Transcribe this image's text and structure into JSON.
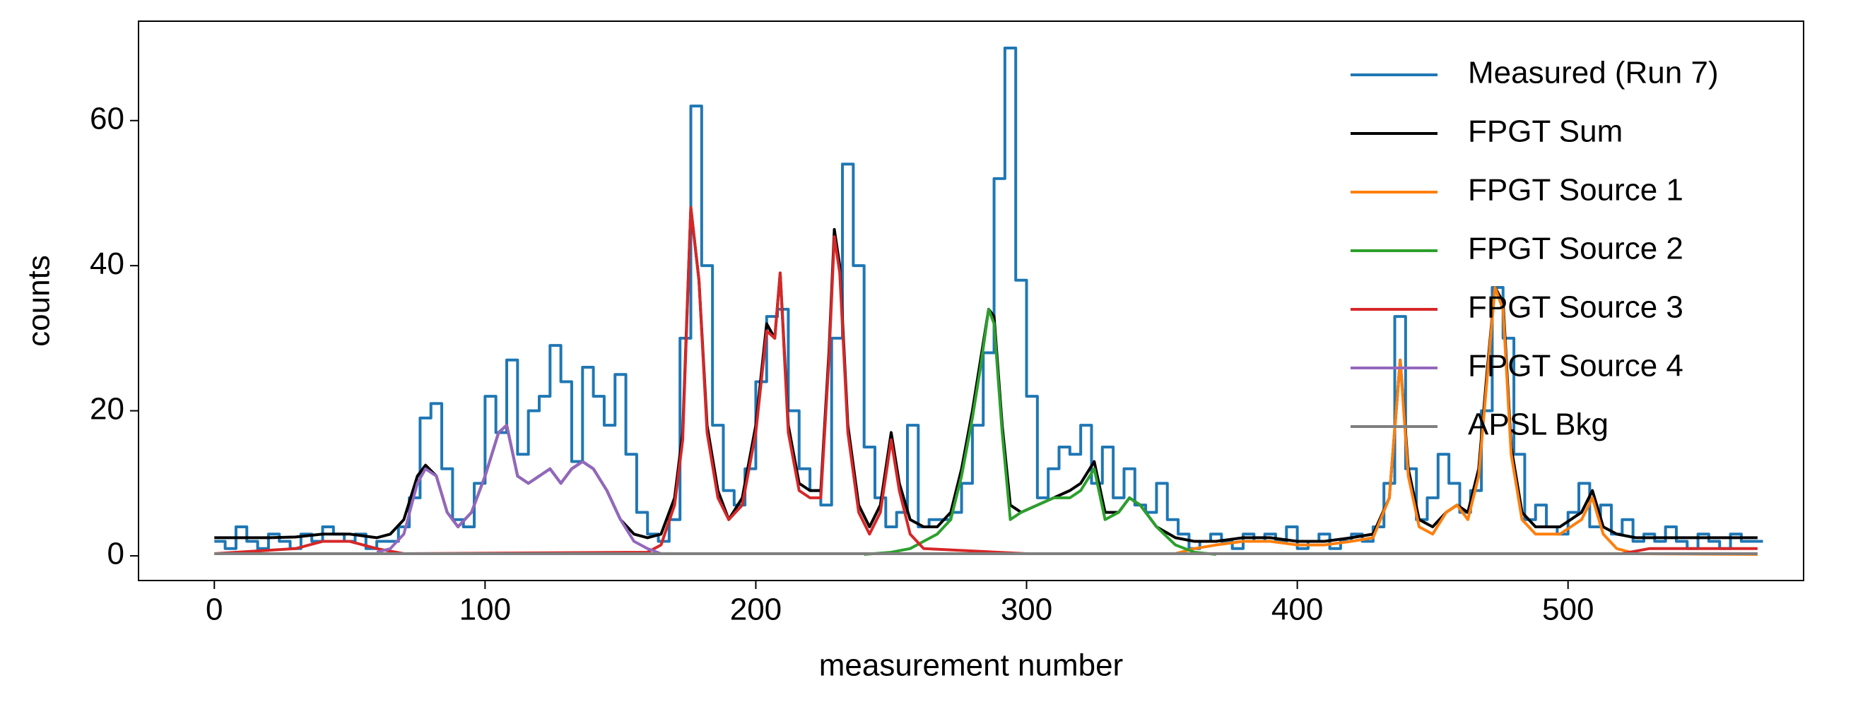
{
  "chart_data": {
    "type": "line",
    "xlabel": "measurement number",
    "ylabel": "counts",
    "xlim": [
      -28,
      587
    ],
    "ylim": [
      -3.4,
      73.7
    ],
    "xticks": [
      0,
      100,
      200,
      300,
      400,
      500
    ],
    "yticks": [
      0,
      20,
      40,
      60
    ],
    "legend": "upper right",
    "series": [
      {
        "name": "Measured (Run 7)",
        "color": "#1f77b4",
        "step": true,
        "x": [
          0,
          4,
          8,
          12,
          16,
          20,
          24,
          28,
          32,
          36,
          40,
          44,
          48,
          52,
          56,
          60,
          64,
          68,
          72,
          76,
          80,
          84,
          88,
          92,
          96,
          100,
          104,
          108,
          112,
          116,
          120,
          124,
          128,
          132,
          136,
          140,
          144,
          148,
          152,
          156,
          160,
          164,
          168,
          172,
          176,
          180,
          184,
          188,
          192,
          196,
          200,
          204,
          208,
          212,
          216,
          220,
          224,
          228,
          232,
          236,
          240,
          244,
          248,
          252,
          256,
          260,
          264,
          268,
          272,
          276,
          280,
          284,
          288,
          292,
          296,
          300,
          304,
          308,
          312,
          316,
          320,
          324,
          328,
          332,
          336,
          340,
          344,
          348,
          352,
          356,
          360,
          364,
          368,
          372,
          376,
          380,
          384,
          388,
          392,
          396,
          400,
          404,
          408,
          412,
          416,
          420,
          424,
          428,
          432,
          436,
          440,
          444,
          448,
          452,
          456,
          460,
          464,
          468,
          472,
          476,
          480,
          484,
          488,
          492,
          496,
          500,
          504,
          508,
          512,
          516,
          520,
          524,
          528,
          532,
          536,
          540,
          544,
          548,
          552,
          556,
          560,
          564,
          568
        ],
        "values": [
          2,
          1,
          4,
          2,
          1,
          3,
          2,
          1,
          3,
          2,
          4,
          3,
          2,
          3,
          1,
          2,
          2,
          4,
          8,
          19,
          21,
          12,
          5,
          4,
          10,
          22,
          17,
          27,
          14,
          20,
          22,
          29,
          24,
          13,
          26,
          22,
          18,
          25,
          14,
          6,
          3,
          2,
          5,
          30,
          62,
          40,
          18,
          9,
          7,
          12,
          24,
          33,
          34,
          20,
          12,
          9,
          7,
          30,
          54,
          40,
          15,
          8,
          4,
          6,
          18,
          4,
          5,
          5,
          6,
          10,
          18,
          28,
          52,
          70,
          38,
          22,
          8,
          12,
          15,
          14,
          18,
          10,
          15,
          8,
          12,
          7,
          6,
          10,
          5,
          3,
          1,
          2,
          3,
          2,
          1,
          3,
          2,
          3,
          2,
          4,
          1,
          2,
          3,
          1,
          2,
          3,
          2,
          4,
          10,
          33,
          12,
          5,
          8,
          14,
          10,
          6,
          9,
          20,
          37,
          30,
          14,
          5,
          7,
          4,
          3,
          6,
          10,
          4,
          7,
          3,
          5,
          2,
          3,
          2,
          4,
          2,
          1,
          3,
          2,
          1,
          3,
          2,
          2
        ]
      },
      {
        "name": "FPGT Sum",
        "color": "#000000",
        "x": [
          0,
          10,
          20,
          30,
          40,
          50,
          60,
          65,
          70,
          75,
          78,
          82,
          86,
          90,
          95,
          100,
          105,
          108,
          112,
          116,
          120,
          124,
          128,
          132,
          136,
          140,
          145,
          150,
          155,
          160,
          165,
          170,
          173,
          176,
          179,
          182,
          186,
          190,
          195,
          200,
          204,
          207,
          209,
          212,
          216,
          220,
          224,
          227,
          229,
          231,
          234,
          238,
          242,
          246,
          250,
          253,
          257,
          262,
          267,
          272,
          276,
          280,
          283,
          286,
          288,
          291,
          294,
          298,
          304,
          310,
          316,
          320,
          325,
          329,
          334,
          338,
          342,
          348,
          355,
          362,
          370,
          380,
          390,
          400,
          410,
          420,
          428,
          434,
          438,
          441,
          445,
          450,
          455,
          459,
          463,
          467,
          470,
          473,
          476,
          479,
          483,
          488,
          493,
          497,
          501,
          505,
          509,
          513,
          518,
          525,
          535,
          550,
          570
        ],
        "values": [
          2.5,
          2.5,
          2.5,
          2.6,
          3,
          3,
          2.5,
          3,
          5,
          11,
          12.5,
          11,
          6,
          4,
          6,
          11,
          17,
          18,
          11,
          10,
          11,
          12,
          10,
          12,
          13,
          12,
          9,
          5,
          3,
          2.5,
          3,
          8,
          17,
          48,
          38,
          18,
          9,
          5,
          8,
          18,
          32,
          30,
          39,
          18,
          10,
          9,
          9,
          28,
          45,
          40,
          18,
          7,
          4,
          7,
          17,
          10,
          5,
          4,
          4,
          6,
          12,
          20,
          27,
          34,
          33,
          18,
          7,
          6,
          7,
          8,
          9,
          10,
          13,
          6,
          6,
          8,
          7,
          4,
          2.5,
          2,
          2,
          2.5,
          2.5,
          2,
          2,
          2.5,
          3,
          8,
          27,
          12,
          5,
          4,
          6,
          7,
          6,
          12,
          25,
          37,
          35,
          15,
          6,
          4,
          4,
          4,
          5,
          6,
          9,
          4,
          3,
          2.5,
          2.5,
          2.5,
          2.5
        ]
      },
      {
        "name": "FPGT Source 1",
        "color": "#ff7f0e",
        "x": [
          355,
          362,
          370,
          380,
          390,
          400,
          410,
          420,
          428,
          434,
          438,
          441,
          445,
          450,
          455,
          459,
          463,
          467,
          470,
          473,
          476,
          479,
          483,
          488,
          493,
          497,
          501,
          505,
          509,
          513,
          518,
          525,
          570
        ],
        "values": [
          0.3,
          1,
          1.5,
          2,
          2,
          1.5,
          1.5,
          2,
          2.5,
          8,
          27,
          11,
          4,
          3,
          6,
          7,
          5,
          11,
          24,
          37,
          34,
          14,
          5,
          3,
          3,
          3,
          4,
          5,
          8,
          3,
          1,
          0.3,
          0.2
        ]
      },
      {
        "name": "FPGT Source 2",
        "color": "#2ca02c",
        "x": [
          240,
          250,
          257,
          262,
          267,
          272,
          276,
          280,
          283,
          286,
          288,
          291,
          294,
          298,
          304,
          310,
          316,
          320,
          325,
          329,
          334,
          338,
          342,
          348,
          355,
          362,
          370
        ],
        "values": [
          0.2,
          0.5,
          1,
          2,
          3,
          5,
          11,
          19,
          26,
          34,
          32,
          17,
          5,
          6,
          7,
          8,
          8,
          9,
          12,
          5,
          6,
          8,
          7,
          4,
          1.5,
          0.5,
          0.2
        ]
      },
      {
        "name": "FPGT Source 3",
        "color": "#d62728",
        "x": [
          0,
          30,
          40,
          50,
          60,
          70,
          160,
          165,
          170,
          173,
          176,
          179,
          182,
          186,
          190,
          195,
          200,
          204,
          207,
          209,
          212,
          216,
          220,
          224,
          227,
          229,
          231,
          234,
          238,
          242,
          246,
          250,
          253,
          257,
          262,
          300,
          520,
          530,
          570
        ],
        "values": [
          0.3,
          1,
          2,
          2,
          1,
          0.3,
          0.5,
          1.5,
          7,
          16,
          48,
          38,
          17,
          8,
          5,
          7,
          17,
          31,
          30,
          39,
          17,
          9,
          8,
          8,
          27,
          44,
          39,
          17,
          6,
          3,
          6,
          16,
          9,
          3,
          1,
          0.3,
          0.3,
          1,
          1
        ]
      },
      {
        "name": "FPGT Source 4",
        "color": "#9467bd",
        "x": [
          60,
          65,
          70,
          75,
          78,
          82,
          86,
          90,
          95,
          100,
          105,
          108,
          112,
          116,
          120,
          124,
          128,
          132,
          136,
          140,
          145,
          150,
          155,
          160,
          165
        ],
        "values": [
          0.5,
          1,
          3,
          10,
          12,
          11,
          6,
          4,
          6,
          11,
          17,
          18,
          11,
          10,
          11,
          12,
          10,
          12,
          13,
          12,
          9,
          5,
          2,
          1,
          0.3
        ]
      },
      {
        "name": "APSL Bkg",
        "color": "#7f7f7f",
        "x": [
          0,
          570
        ],
        "values": [
          0.3,
          0.3
        ]
      }
    ]
  }
}
